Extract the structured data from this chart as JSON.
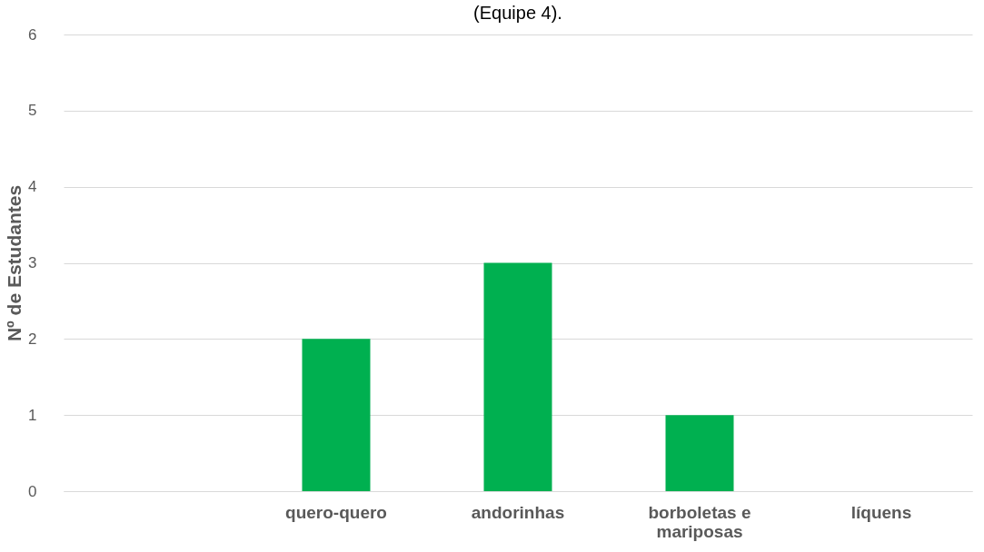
{
  "chart_data": {
    "type": "bar",
    "title": "(Equipe 4).",
    "ylabel": "Nº de Estudantes",
    "categories": [
      null,
      "quero-quero",
      "andorinhas",
      "borboletas e\nmariposas",
      "líquens"
    ],
    "values": [
      null,
      2,
      3,
      1,
      0
    ],
    "color": "#00b050",
    "ylim": [
      0,
      6
    ],
    "yticks": [
      0,
      1,
      2,
      3,
      4,
      5,
      6
    ],
    "grid": "y"
  }
}
